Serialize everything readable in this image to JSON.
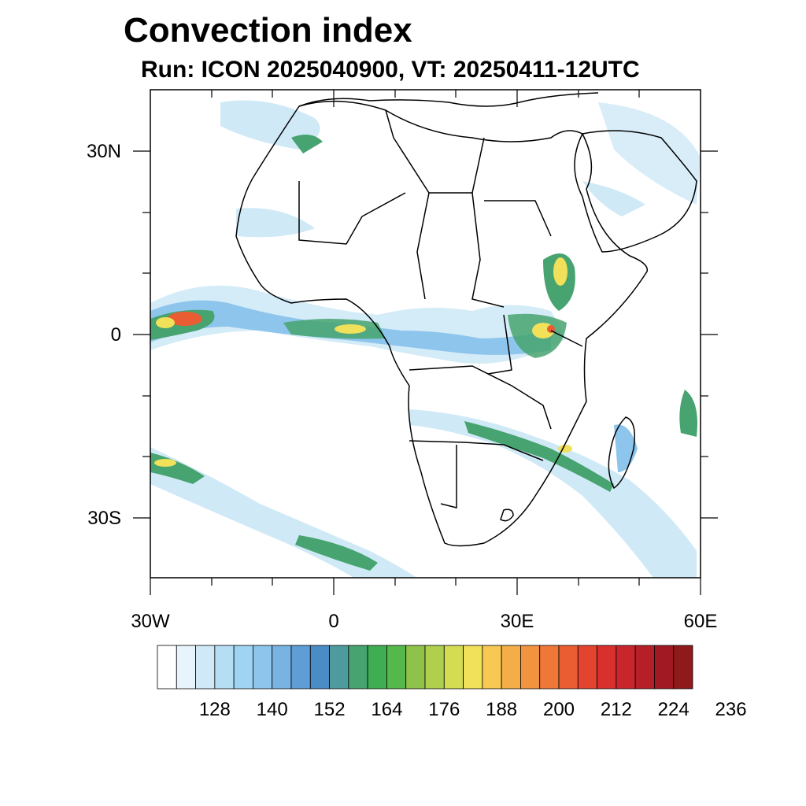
{
  "title": "Convection index",
  "subtitle": "Run: ICON 2025040900,  VT: 20250411-12UTC",
  "axes": {
    "lon_ticks": [
      "30W",
      "0",
      "30E",
      "60E"
    ],
    "lat_ticks": [
      "30N",
      "0",
      "30S"
    ],
    "lon_range": [
      -30,
      60
    ],
    "lat_range": [
      -40,
      40
    ]
  },
  "colorbar": {
    "labels": [
      "128",
      "140",
      "152",
      "164",
      "176",
      "188",
      "200",
      "212",
      "224",
      "236"
    ],
    "colors": [
      "#ffffff",
      "#e8f4fb",
      "#cfe9f7",
      "#b5def5",
      "#9fd4f3",
      "#8ec5ec",
      "#78b3e2",
      "#5e9dd5",
      "#4a8cc6",
      "#4e9b9d",
      "#47a36f",
      "#3fae52",
      "#55b84a",
      "#8fc24b",
      "#b0cf4d",
      "#d4dc52",
      "#f0e05a",
      "#f7c852",
      "#f4ad47",
      "#f2933f",
      "#ef7838",
      "#ea5d32",
      "#e2442f",
      "#d7302f",
      "#c8262c",
      "#b71f28",
      "#a11a23",
      "#8e1a1c"
    ]
  },
  "map_colors": {
    "light": "#cfe9f7",
    "mid": "#8ec5ec",
    "green": "#47a36f",
    "yellow": "#f0e05a",
    "red": "#ea5d32"
  }
}
